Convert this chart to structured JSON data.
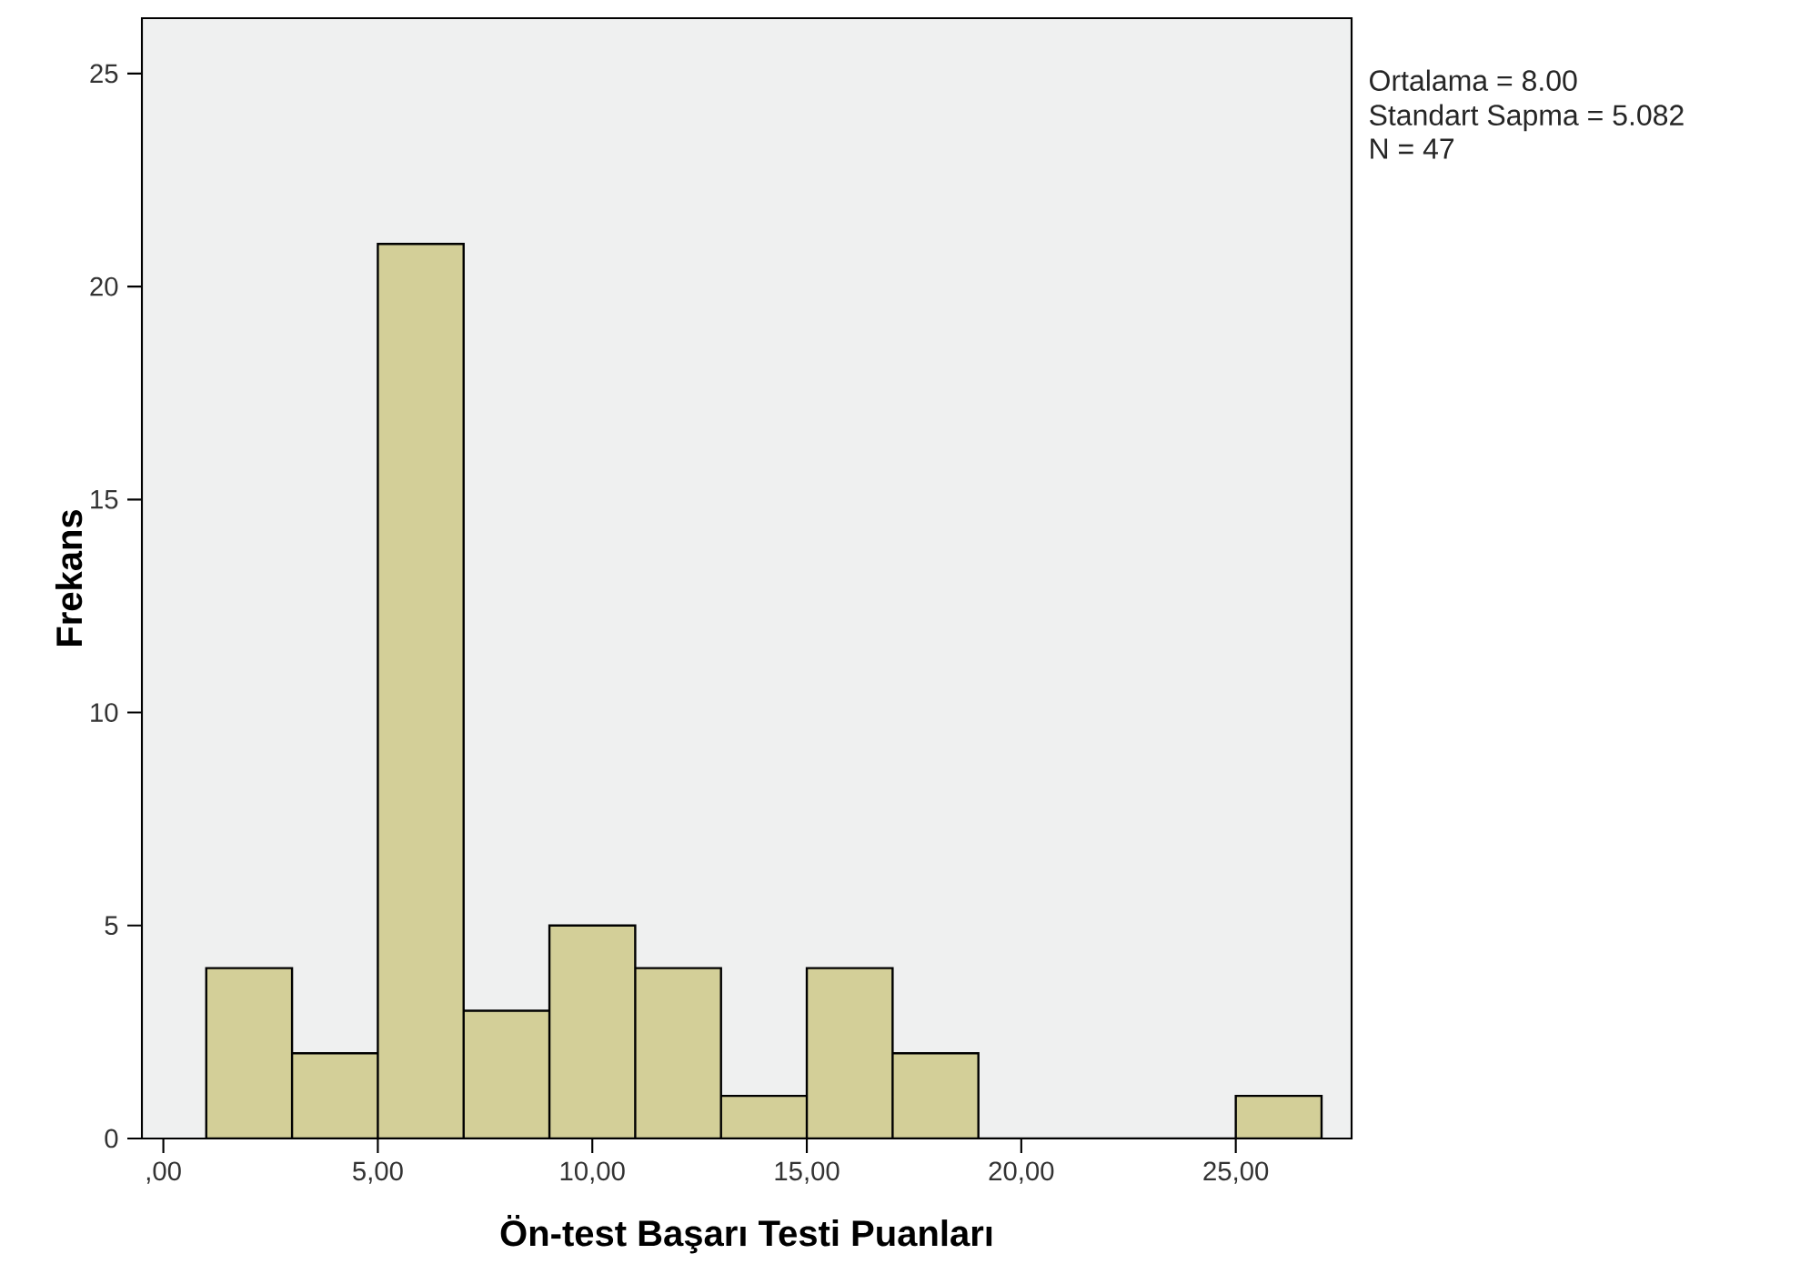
{
  "chart_data": {
    "type": "histogram",
    "xlabel": "Ön-test Başarı Testi Puanları",
    "ylabel": "Frekans",
    "bins": [
      1,
      3,
      5,
      7,
      9,
      11,
      13,
      15,
      17,
      19,
      21,
      23,
      25,
      27
    ],
    "values": [
      4,
      2,
      21,
      3,
      5,
      4,
      1,
      4,
      2,
      0,
      0,
      0,
      1
    ],
    "color": "#d3cf98",
    "xlim": [
      -0.5,
      27.7
    ],
    "ylim": [
      0,
      26.3
    ],
    "xticks": [
      {
        "value": 0,
        "label": ",00"
      },
      {
        "value": 5,
        "label": "5,00"
      },
      {
        "value": 10,
        "label": "10,00"
      },
      {
        "value": 15,
        "label": "15,00"
      },
      {
        "value": 20,
        "label": "20,00"
      },
      {
        "value": 25,
        "label": "25,00"
      }
    ],
    "yticks": [
      0,
      5,
      10,
      15,
      20,
      25
    ],
    "grid": false,
    "annotations": [
      "Ortalama = 8.00",
      "Standart Sapma = 5.082",
      "N = 47"
    ]
  }
}
